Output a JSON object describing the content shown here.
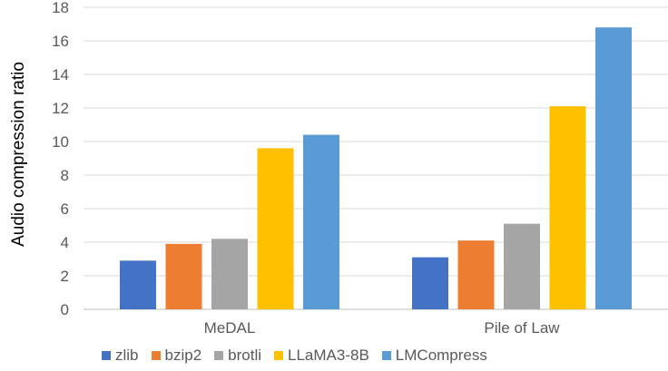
{
  "chart_data": {
    "type": "bar",
    "title": "",
    "xlabel": "",
    "ylabel": "Audio compression ratio",
    "ylim": [
      0,
      18
    ],
    "yticks": [
      0,
      2,
      4,
      6,
      8,
      10,
      12,
      14,
      16,
      18
    ],
    "grid": true,
    "legend_position": "bottom",
    "categories": [
      "MeDAL",
      "Pile of Law"
    ],
    "series": [
      {
        "name": "zlib",
        "color": "#4472C4",
        "values": [
          2.9,
          3.1
        ]
      },
      {
        "name": "bzip2",
        "color": "#ED7D31",
        "values": [
          3.9,
          4.1
        ]
      },
      {
        "name": "brotli",
        "color": "#A5A5A5",
        "values": [
          4.2,
          5.1
        ]
      },
      {
        "name": "LLaMA3-8B",
        "color": "#FFC000",
        "values": [
          9.6,
          12.1
        ]
      },
      {
        "name": "LMCompress",
        "color": "#5B9BD5",
        "values": [
          10.4,
          16.8
        ]
      }
    ]
  }
}
